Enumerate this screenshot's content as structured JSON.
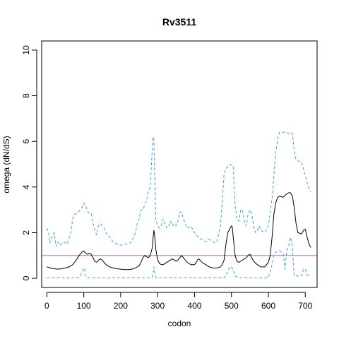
{
  "chart_data": {
    "type": "line",
    "title": "Rv3511",
    "xlabel": "codon",
    "ylabel": "omega (dN/dS)",
    "xlim": [
      -14,
      732
    ],
    "ylim": [
      -0.4,
      10.4
    ],
    "x_ticks": [
      0,
      100,
      200,
      300,
      400,
      500,
      600,
      700
    ],
    "y_ticks": [
      0,
      2,
      4,
      6,
      8,
      10
    ],
    "reference_line": {
      "y": 1,
      "color": "#cc66cc"
    },
    "grid": false,
    "legend": "none",
    "series": [
      {
        "role": "upper",
        "color": "#3aa0dc",
        "style": "dashed",
        "x": [
          0,
          5,
          8,
          15,
          20,
          25,
          30,
          35,
          40,
          45,
          55,
          65,
          70,
          75,
          80,
          85,
          90,
          95,
          100,
          102,
          105,
          110,
          115,
          120,
          125,
          130,
          135,
          140,
          145,
          150,
          155,
          160,
          165,
          170,
          180,
          190,
          200,
          210,
          220,
          230,
          235,
          240,
          245,
          250,
          255,
          260,
          265,
          270,
          275,
          280,
          285,
          288,
          290,
          292,
          295,
          300,
          305,
          310,
          315,
          320,
          325,
          330,
          335,
          340,
          345,
          350,
          355,
          360,
          365,
          370,
          375,
          380,
          390,
          400,
          410,
          420,
          430,
          440,
          450,
          455,
          460,
          465,
          470,
          475,
          480,
          485,
          490,
          500,
          505,
          510,
          515,
          520,
          525,
          530,
          535,
          540,
          545,
          550,
          555,
          560,
          565,
          570,
          575,
          580,
          590,
          600,
          605,
          610,
          615,
          620,
          625,
          630,
          640,
          650,
          655,
          660,
          665,
          670,
          675,
          680,
          690,
          700,
          705,
          710,
          715
        ],
        "y": [
          2.2,
          2.0,
          1.55,
          1.9,
          2.0,
          1.4,
          1.6,
          1.45,
          1.5,
          1.6,
          1.5,
          2.0,
          2.6,
          2.8,
          2.85,
          2.9,
          3.0,
          3.1,
          3.3,
          3.25,
          3.2,
          2.95,
          2.85,
          2.85,
          2.4,
          2.1,
          1.9,
          2.3,
          2.4,
          2.3,
          2.2,
          2.0,
          1.9,
          1.8,
          1.6,
          1.5,
          1.45,
          1.5,
          1.5,
          1.6,
          1.8,
          2.0,
          2.4,
          2.6,
          3.0,
          3.0,
          3.2,
          3.4,
          3.8,
          4.0,
          5.5,
          6.2,
          6.1,
          4.5,
          2.6,
          2.3,
          2.2,
          2.3,
          2.6,
          2.4,
          2.2,
          2.3,
          2.5,
          2.3,
          2.4,
          2.3,
          2.5,
          2.9,
          2.9,
          2.6,
          2.4,
          2.2,
          2.3,
          2.0,
          1.8,
          1.7,
          1.6,
          1.7,
          1.6,
          1.55,
          1.6,
          1.9,
          2.3,
          3.3,
          4.6,
          4.8,
          4.9,
          5.0,
          4.9,
          3.2,
          2.6,
          2.5,
          3.0,
          3.0,
          2.5,
          2.3,
          2.8,
          3.0,
          2.8,
          2.3,
          2.0,
          2.1,
          2.3,
          2.1,
          2.0,
          2.3,
          2.9,
          3.5,
          4.5,
          5.5,
          6.1,
          6.4,
          6.4,
          6.4,
          6.35,
          6.4,
          6.35,
          5.6,
          5.2,
          5.15,
          5.1,
          4.5,
          4.2,
          3.9,
          3.8
        ]
      },
      {
        "role": "estimate",
        "color": "#000000",
        "style": "solid",
        "x": [
          0,
          10,
          20,
          30,
          40,
          50,
          60,
          70,
          80,
          85,
          90,
          95,
          100,
          105,
          110,
          115,
          120,
          125,
          130,
          135,
          140,
          145,
          150,
          155,
          160,
          170,
          180,
          190,
          200,
          210,
          220,
          230,
          240,
          250,
          255,
          260,
          265,
          270,
          275,
          280,
          285,
          288,
          290,
          292,
          295,
          300,
          305,
          310,
          315,
          320,
          330,
          340,
          345,
          350,
          355,
          360,
          365,
          370,
          380,
          390,
          400,
          405,
          410,
          415,
          420,
          430,
          440,
          450,
          460,
          470,
          475,
          480,
          485,
          490,
          495,
          500,
          502,
          505,
          510,
          515,
          520,
          530,
          540,
          545,
          550,
          555,
          560,
          570,
          580,
          590,
          600,
          605,
          610,
          615,
          620,
          625,
          630,
          640,
          650,
          655,
          660,
          665,
          670,
          675,
          680,
          690,
          695,
          700,
          705,
          710,
          715
        ],
        "y": [
          0.5,
          0.45,
          0.42,
          0.4,
          0.42,
          0.45,
          0.5,
          0.6,
          0.8,
          0.95,
          1.05,
          1.15,
          1.2,
          1.1,
          1.05,
          1.1,
          1.05,
          0.9,
          0.75,
          0.7,
          0.8,
          0.85,
          0.8,
          0.7,
          0.6,
          0.5,
          0.45,
          0.42,
          0.4,
          0.38,
          0.38,
          0.4,
          0.45,
          0.55,
          0.7,
          0.9,
          1.0,
          0.95,
          0.9,
          1.0,
          1.3,
          1.8,
          2.1,
          1.9,
          1.3,
          0.8,
          0.65,
          0.6,
          0.6,
          0.65,
          0.75,
          0.85,
          0.8,
          0.75,
          0.8,
          0.9,
          1.0,
          0.9,
          0.7,
          0.6,
          0.6,
          0.7,
          0.85,
          0.8,
          0.7,
          0.6,
          0.5,
          0.45,
          0.45,
          0.5,
          0.6,
          0.8,
          1.5,
          2.0,
          2.15,
          2.3,
          2.25,
          1.8,
          1.0,
          0.75,
          0.7,
          0.8,
          0.9,
          1.0,
          1.05,
          0.9,
          0.75,
          0.6,
          0.5,
          0.5,
          0.7,
          1.0,
          1.8,
          2.8,
          3.3,
          3.55,
          3.6,
          3.55,
          3.7,
          3.75,
          3.75,
          3.6,
          3.1,
          2.4,
          2.0,
          1.95,
          2.1,
          2.15,
          1.8,
          1.5,
          1.35
        ]
      },
      {
        "role": "lower",
        "color": "#3aa0dc",
        "style": "dashed",
        "x": [
          0,
          20,
          40,
          60,
          80,
          90,
          95,
          100,
          102,
          105,
          110,
          120,
          140,
          160,
          180,
          200,
          220,
          240,
          250,
          260,
          270,
          280,
          285,
          288,
          290,
          292,
          295,
          300,
          320,
          340,
          360,
          380,
          400,
          420,
          440,
          460,
          470,
          480,
          485,
          490,
          495,
          500,
          505,
          510,
          520,
          540,
          560,
          580,
          600,
          605,
          610,
          615,
          620,
          630,
          640,
          645,
          650,
          655,
          660,
          665,
          670,
          680,
          690,
          695,
          700,
          705,
          710,
          715
        ],
        "y": [
          0.02,
          0.02,
          0.02,
          0.02,
          0.02,
          0.05,
          0.3,
          0.45,
          0.42,
          0.1,
          0.02,
          0.02,
          0.02,
          0.02,
          0.02,
          0.02,
          0.02,
          0.02,
          0.02,
          0.02,
          0.02,
          0.02,
          0.05,
          0.3,
          0.5,
          0.3,
          0.05,
          0.02,
          0.02,
          0.02,
          0.02,
          0.02,
          0.02,
          0.02,
          0.02,
          0.02,
          0.02,
          0.02,
          0.1,
          0.3,
          0.5,
          0.5,
          0.35,
          0.1,
          0.02,
          0.02,
          0.02,
          0.02,
          0.02,
          0.3,
          0.6,
          1.0,
          1.15,
          1.2,
          1.1,
          0.4,
          1.2,
          1.4,
          1.8,
          1.4,
          0.1,
          0.1,
          0.1,
          0.4,
          0.4,
          0.15,
          0.1,
          0.1
        ]
      }
    ]
  }
}
